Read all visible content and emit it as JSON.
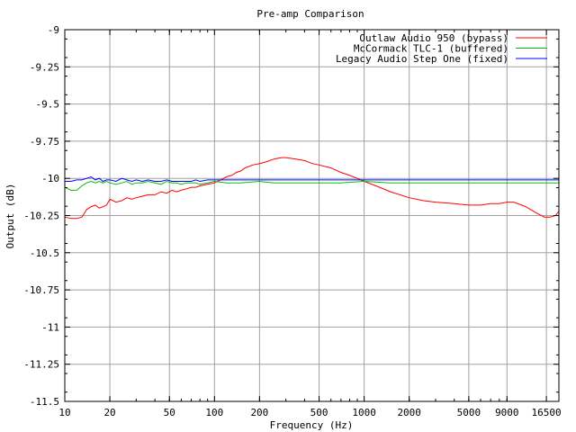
{
  "chart_data": {
    "type": "line",
    "title": "Pre-amp Comparison",
    "xlabel": "Frequency (Hz)",
    "ylabel": "Output (dB)",
    "x_scale": "log",
    "xlim": [
      10,
      20000
    ],
    "ylim": [
      -11.5,
      -9
    ],
    "grid": true,
    "legend_position": "top-right",
    "x_ticks": [
      10,
      20,
      50,
      100,
      200,
      500,
      1000,
      2000,
      5000,
      9000,
      16500
    ],
    "x_tick_labels": [
      "10",
      "20",
      "50",
      "100",
      "200",
      "500",
      "1000",
      "2000",
      "5000",
      "9000",
      "16500"
    ],
    "y_ticks": [
      -9,
      -9.25,
      -9.5,
      -9.75,
      -10,
      -10.25,
      -10.5,
      -10.75,
      -11,
      -11.25,
      -11.5
    ],
    "y_tick_labels": [
      "-9",
      "-9.25",
      "-9.5",
      "-9.75",
      "-10",
      "-10.25",
      "-10.5",
      "-10.75",
      "-11",
      "-11.25",
      "-11.5"
    ],
    "series": [
      {
        "name": "Outlaw Audio 950 (bypass)",
        "color": "#ff0000",
        "x": [
          10,
          11,
          12,
          13,
          14,
          15,
          16,
          17,
          18,
          19,
          20,
          22,
          24,
          26,
          28,
          30,
          33,
          36,
          40,
          44,
          48,
          52,
          56,
          60,
          65,
          70,
          75,
          80,
          90,
          100,
          110,
          120,
          130,
          140,
          150,
          160,
          180,
          200,
          220,
          250,
          280,
          300,
          350,
          400,
          450,
          500,
          600,
          700,
          800,
          900,
          1000,
          1200,
          1500,
          2000,
          2500,
          3000,
          4000,
          5000,
          6000,
          7000,
          8000,
          9000,
          10000,
          12000,
          14000,
          16000,
          17500,
          19000,
          20000
        ],
        "y": [
          -10.26,
          -10.27,
          -10.27,
          -10.26,
          -10.21,
          -10.19,
          -10.18,
          -10.2,
          -10.19,
          -10.18,
          -10.14,
          -10.16,
          -10.15,
          -10.13,
          -10.14,
          -10.13,
          -10.12,
          -10.11,
          -10.11,
          -10.09,
          -10.1,
          -10.08,
          -10.09,
          -10.08,
          -10.07,
          -10.06,
          -10.06,
          -10.05,
          -10.04,
          -10.03,
          -10.01,
          -9.99,
          -9.98,
          -9.96,
          -9.95,
          -9.93,
          -9.91,
          -9.9,
          -9.89,
          -9.87,
          -9.86,
          -9.86,
          -9.87,
          -9.88,
          -9.9,
          -9.91,
          -9.93,
          -9.96,
          -9.98,
          -10.0,
          -10.02,
          -10.05,
          -10.09,
          -10.13,
          -10.15,
          -10.16,
          -10.17,
          -10.18,
          -10.18,
          -10.17,
          -10.17,
          -10.16,
          -10.16,
          -10.19,
          -10.23,
          -10.26,
          -10.26,
          -10.25,
          -10.22
        ]
      },
      {
        "name": "McCormack TLC-1 (buffered)",
        "color": "#00c000",
        "x": [
          10,
          11,
          12,
          13,
          14,
          15,
          16,
          17,
          18,
          19,
          20,
          22,
          24,
          26,
          28,
          30,
          33,
          36,
          40,
          44,
          48,
          52,
          56,
          60,
          65,
          70,
          75,
          80,
          90,
          100,
          120,
          150,
          200,
          250,
          300,
          400,
          500,
          700,
          1000,
          1500,
          2000,
          3000,
          5000,
          7000,
          10000,
          14000,
          20000
        ],
        "y": [
          -10.06,
          -10.08,
          -10.08,
          -10.05,
          -10.03,
          -10.02,
          -10.03,
          -10.02,
          -10.03,
          -10.02,
          -10.03,
          -10.04,
          -10.03,
          -10.02,
          -10.04,
          -10.03,
          -10.03,
          -10.02,
          -10.03,
          -10.04,
          -10.02,
          -10.03,
          -10.03,
          -10.04,
          -10.03,
          -10.03,
          -10.03,
          -10.04,
          -10.03,
          -10.02,
          -10.03,
          -10.03,
          -10.02,
          -10.03,
          -10.03,
          -10.03,
          -10.03,
          -10.03,
          -10.02,
          -10.03,
          -10.03,
          -10.03,
          -10.03,
          -10.03,
          -10.03,
          -10.03,
          -10.03
        ]
      },
      {
        "name": "Legacy Audio Step One (fixed)",
        "color": "#0000ff",
        "x": [
          10,
          11,
          12,
          13,
          14,
          15,
          16,
          17,
          18,
          19,
          20,
          22,
          24,
          26,
          28,
          30,
          33,
          36,
          40,
          44,
          48,
          52,
          56,
          60,
          65,
          70,
          75,
          80,
          90,
          100,
          120,
          150,
          200,
          250,
          300,
          400,
          500,
          700,
          1000,
          1500,
          2000,
          3000,
          5000,
          7000,
          10000,
          14000,
          20000
        ],
        "y": [
          -10.02,
          -10.02,
          -10.01,
          -10.01,
          -10.0,
          -9.99,
          -10.01,
          -10.0,
          -10.02,
          -10.01,
          -10.01,
          -10.02,
          -10.0,
          -10.01,
          -10.02,
          -10.01,
          -10.02,
          -10.01,
          -10.02,
          -10.02,
          -10.01,
          -10.02,
          -10.02,
          -10.02,
          -10.02,
          -10.02,
          -10.01,
          -10.02,
          -10.01,
          -10.01,
          -10.01,
          -10.01,
          -10.01,
          -10.01,
          -10.01,
          -10.01,
          -10.01,
          -10.01,
          -10.01,
          -10.01,
          -10.01,
          -10.01,
          -10.01,
          -10.01,
          -10.01,
          -10.01,
          -10.01
        ]
      }
    ]
  }
}
